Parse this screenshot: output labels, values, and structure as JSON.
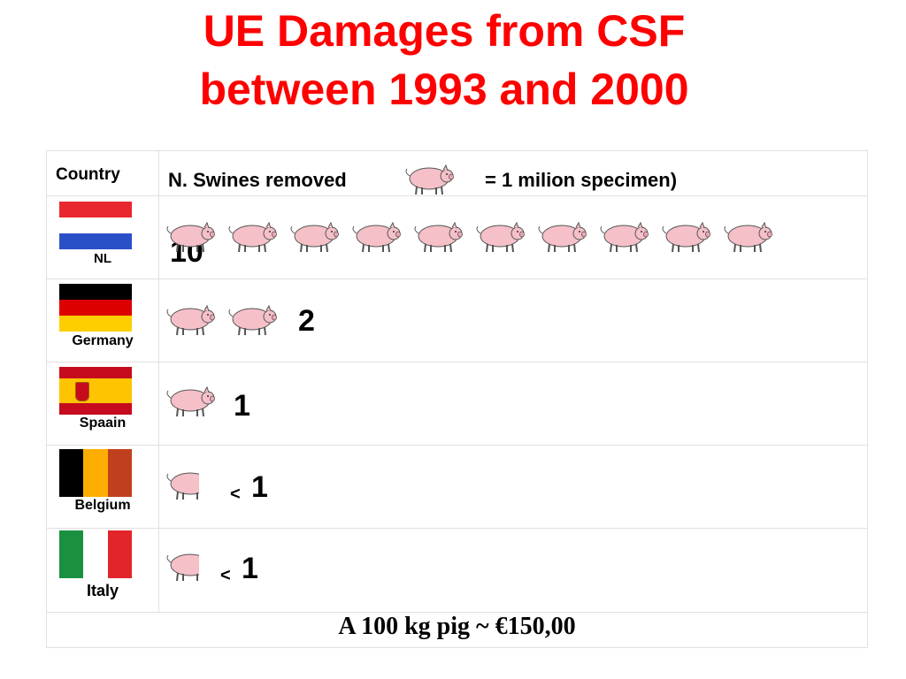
{
  "title": {
    "line1": "UE Damages from CSF",
    "line2": "between 1993 and 2000"
  },
  "colors": {
    "title": "#ff0000",
    "pig_fill": "#f5c0c8",
    "pig_stroke": "#555555"
  },
  "header": {
    "country_label": "Country",
    "swines_label": "N. Swines  removed",
    "legend_text": "= 1 milion specimen)",
    "legend_icon": "pig-icon"
  },
  "rows": [
    {
      "country": "NL",
      "flag": "netherlands-flag",
      "pigs": 10,
      "value": "10",
      "less_than": ""
    },
    {
      "country": "Germany",
      "flag": "germany-flag",
      "pigs": 2,
      "value": "2",
      "less_than": ""
    },
    {
      "country": "Spaain",
      "flag": "spain-flag",
      "pigs": 1,
      "value": "1",
      "less_than": ""
    },
    {
      "country": "Belgium",
      "flag": "belgium-flag",
      "pigs": 0.7,
      "value": "1",
      "less_than": "<"
    },
    {
      "country": "Italy",
      "flag": "italy-flag",
      "pigs": 0.7,
      "value": "1",
      "less_than": "<"
    }
  ],
  "footer": "A 100 kg pig  ~ €150,00"
}
